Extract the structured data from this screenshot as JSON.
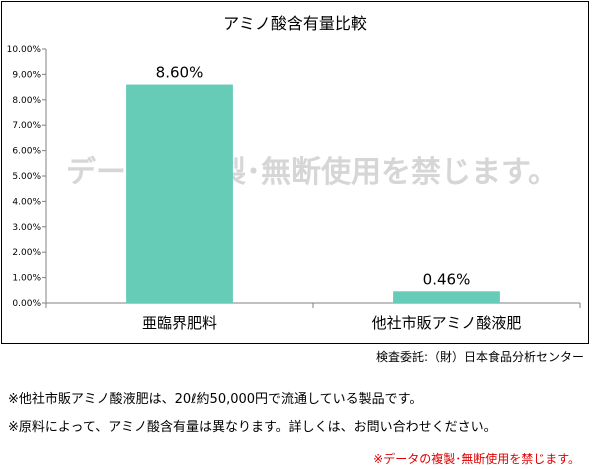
{
  "chart_data": {
    "type": "bar",
    "title": "アミノ酸含有量比較",
    "categories": [
      "亜臨界肥料",
      "他社市販アミノ酸液肥"
    ],
    "values": [
      8.6,
      0.46
    ],
    "data_labels": [
      "8.60%",
      "0.46%"
    ],
    "ylim": [
      0,
      10
    ],
    "yticks": [
      "0.00%",
      "1.00%",
      "2.00%",
      "3.00%",
      "4.00%",
      "5.00%",
      "6.00%",
      "7.00%",
      "8.00%",
      "9.00%",
      "10.00%"
    ],
    "xlabel": "",
    "ylabel": "",
    "grid": false,
    "bar_color": "#66ccb8",
    "watermark": "データの複製･無断使用を禁じます。"
  },
  "source": "検査委託:（財）日本食品分析センター",
  "notes": [
    "※他社市販アミノ酸液肥は、20ℓ約50,000円で流通している製品です。",
    "※原料によって、アミノ酸含有量は異なります。詳しくは、お問い合わせください。"
  ],
  "footer_notice": "※データの複製･無断使用を禁じます。"
}
